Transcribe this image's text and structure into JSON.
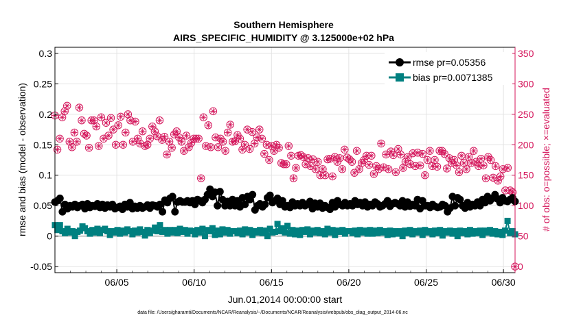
{
  "chart_data": {
    "type": "line",
    "title": "Southern Hemisphere",
    "subtitle": "AIRS_SPECIFIC_HUMIDITY @ 3.125000e+02 hPa",
    "xlabel": "Jun.01,2014 00:00:00 start",
    "ylabel": "rmse and bias (model - observation)",
    "y2label": "# of obs: o=possible; ×=evaluated",
    "xlim": [
      1,
      30.75
    ],
    "ylim": [
      -0.06,
      0.31
    ],
    "y2lim": [
      -10,
      360
    ],
    "x_ticks": [
      5,
      10,
      15,
      20,
      25,
      30
    ],
    "x_tick_labels": [
      "06/05",
      "06/10",
      "06/15",
      "06/20",
      "06/25",
      "06/30"
    ],
    "y_ticks": [
      -0.05,
      0,
      0.05,
      0.1,
      0.15,
      0.2,
      0.25,
      0.3
    ],
    "y_tick_labels": [
      "-0.05",
      "0",
      "0.05",
      "0.1",
      "0.15",
      "0.2",
      "0.25",
      "0.3"
    ],
    "y2_ticks": [
      0,
      50,
      100,
      150,
      200,
      250,
      300,
      350
    ],
    "y2_tick_labels": [
      "0",
      "50",
      "100",
      "150",
      "200",
      "250",
      "300",
      "350"
    ],
    "grid": true,
    "legend_position": "top-right",
    "series": [
      {
        "name": "rmse pr=0.05356",
        "axis": "left",
        "color": "#000000",
        "marker": "circle",
        "values": [
          0.056,
          0.058,
          0.062,
          0.04,
          0.052,
          0.045,
          0.05,
          0.048,
          0.052,
          0.047,
          0.05,
          0.052,
          0.045,
          0.053,
          0.047,
          0.05,
          0.049,
          0.053,
          0.047,
          0.052,
          0.046,
          0.051,
          0.048,
          0.052,
          0.045,
          0.047,
          0.049,
          0.044,
          0.052,
          0.048,
          0.055,
          0.045,
          0.049,
          0.046,
          0.05,
          0.046,
          0.048,
          0.051,
          0.046,
          0.051,
          0.05,
          0.048,
          0.052,
          0.04,
          0.059,
          0.055,
          0.062,
          0.065,
          0.04,
          0.056,
          0.058,
          0.056,
          0.056,
          0.058,
          0.055,
          0.058,
          0.052,
          0.06,
          0.058,
          0.055,
          0.06,
          0.068,
          0.077,
          0.065,
          0.072,
          0.05,
          0.073,
          0.06,
          0.05,
          0.057,
          0.05,
          0.06,
          0.05,
          0.058,
          0.048,
          0.063,
          0.052,
          0.065,
          0.06,
          0.068,
          0.043,
          0.05,
          0.053,
          0.048,
          0.052,
          0.063,
          0.067,
          0.055,
          0.058,
          0.062,
          0.052,
          0.058,
          0.048,
          0.05,
          0.047,
          0.056,
          0.05,
          0.053,
          0.05,
          0.055,
          0.05,
          0.052,
          0.057,
          0.045,
          0.054,
          0.048,
          0.054,
          0.046,
          0.05,
          0.047,
          0.044,
          0.055,
          0.048,
          0.058,
          0.052,
          0.05,
          0.055,
          0.05,
          0.053,
          0.05,
          0.058,
          0.052,
          0.055,
          0.05,
          0.056,
          0.048,
          0.052,
          0.05,
          0.056,
          0.053,
          0.048,
          0.05,
          0.053,
          0.058,
          0.049,
          0.053,
          0.055,
          0.053,
          0.05,
          0.058,
          0.048,
          0.056,
          0.049,
          0.052,
          0.05,
          0.06,
          0.045,
          0.058,
          0.05,
          0.05,
          0.047,
          0.052,
          0.049,
          0.047,
          0.048,
          0.052,
          0.05,
          0.04,
          0.046,
          0.065,
          0.05,
          0.063,
          0.06,
          0.05,
          0.046,
          0.055,
          0.048,
          0.052,
          0.05,
          0.056,
          0.05,
          0.06,
          0.055,
          0.065,
          0.058,
          0.062,
          0.068,
          0.061,
          0.055,
          0.063,
          0.058,
          0.057,
          0.06,
          0.063,
          0.057
        ]
      },
      {
        "name": "bias pr=0.0071385",
        "axis": "left",
        "color": "#008080",
        "marker": "square",
        "values": [
          0.018,
          0.01,
          0.018,
          0.008,
          0.005,
          0.012,
          0.006,
          0.008,
          0.0,
          0.007,
          0.009,
          0.016,
          0.013,
          0.008,
          0.004,
          0.01,
          0.006,
          0.012,
          0.005,
          0.01,
          0.012,
          0.008,
          0.002,
          0.008,
          0.006,
          0.01,
          0.004,
          0.009,
          0.006,
          0.011,
          0.008,
          0.003,
          0.009,
          0.006,
          0.011,
          0.007,
          0.001,
          0.01,
          0.005,
          0.009,
          0.014,
          0.008,
          0.018,
          0.007,
          0.01,
          0.004,
          0.01,
          0.006,
          0.01,
          0.005,
          0.012,
          0.007,
          0.01,
          0.004,
          0.009,
          0.008,
          0.003,
          0.01,
          0.006,
          0.012,
          0.0,
          0.01,
          0.008,
          0.013,
          0.002,
          0.009,
          0.003,
          0.011,
          0.006,
          0.01,
          0.004,
          0.008,
          0.008,
          0.005,
          0.009,
          0.003,
          0.011,
          0.006,
          0.01,
          0.002,
          0.008,
          0.006,
          0.01,
          0.005,
          0.009,
          0.0,
          0.012,
          0.006,
          0.007,
          0.02,
          0.008,
          0.013,
          0.006,
          0.017,
          0.004,
          0.01,
          0.003,
          0.009,
          0.002,
          0.01,
          0.007,
          0.011,
          0.003,
          0.009,
          0.006,
          0.01,
          0.005,
          0.008,
          0.003,
          0.012,
          0.006,
          0.01,
          0.002,
          0.009,
          0.007,
          0.01,
          0.004,
          0.008,
          0.008,
          0.005,
          0.009,
          0.003,
          0.01,
          0.006,
          0.009,
          0.004,
          0.01,
          0.004,
          0.009,
          0.005,
          0.01,
          0.006,
          0.008,
          0.002,
          0.009,
          0.003,
          0.008,
          0.004,
          0.008,
          0.0,
          0.009,
          0.005,
          0.01,
          0.003,
          0.008,
          0.006,
          0.009,
          0.002,
          0.01,
          0.006,
          0.008,
          0.003,
          0.009,
          0.005,
          0.01,
          0.001,
          0.008,
          0.006,
          0.009,
          0.004,
          0.008,
          0.0,
          0.009,
          0.005,
          0.008,
          0.003,
          0.01,
          0.004,
          0.008,
          0.005,
          0.009,
          0.002,
          0.009,
          0.006,
          0.01,
          0.004,
          0.008,
          0.003,
          0.007,
          0.002,
          0.009,
          0.025,
          0.005,
          0.008,
          0.003
        ]
      },
      {
        "name": "possible obs",
        "axis": "right",
        "color": "#d4145a",
        "marker": "open-circle",
        "values": [
          248,
          192,
          210,
          245,
          255,
          264,
          205,
          196,
          220,
          205,
          261,
          240,
          218,
          215,
          195,
          240,
          240,
          230,
          198,
          245,
          210,
          236,
          215,
          244,
          225,
          200,
          232,
          246,
          200,
          220,
          250,
          240,
          205,
          238,
          210,
          202,
          222,
          198,
          200,
          210,
          230,
          222,
          214,
          240,
          208,
          213,
          184,
          205,
          195,
          217,
          222,
          212,
          205,
          190,
          215,
          196,
          203,
          210,
          210,
          210,
          145,
          245,
          198,
          232,
          196,
          255,
          212,
          196,
          210,
          205,
          190,
          220,
          233,
          205,
          206,
          216,
          210,
          192,
          200,
          225,
          193,
          221,
          202,
          212,
          225,
          210,
          185,
          200,
          175,
          198,
          190,
          200,
          195,
          170,
          168,
          168,
          198,
          182,
          145,
          162,
          182,
          183,
          180,
          168,
          178,
          165,
          176,
          160,
          172,
          150,
          160,
          150,
          176,
          177,
          148,
          180,
          172,
          178,
          160,
          192,
          179,
          176,
          172,
          154,
          190,
          160,
          170,
          175,
          182,
          167,
          182,
          152,
          165,
          160,
          202,
          163,
          184,
          160,
          189,
          183,
          155,
          193,
          184,
          162,
          172,
          180,
          168,
          186,
          165,
          187,
          166,
          185,
          150,
          175,
          190,
          165,
          175,
          164,
          190,
          190,
          185,
          161,
          178,
          170,
          175,
          166,
          155,
          182,
          170,
          160,
          180,
          170,
          190,
          172,
          165,
          177,
          166,
          145,
          180,
          175,
          146,
          165,
          141,
          148,
          160,
          125,
          162,
          125,
          122,
          0
        ]
      },
      {
        "name": "evaluated obs",
        "axis": "right",
        "color": "#d4145a",
        "marker": "asterisk",
        "values": [
          248,
          192,
          210,
          245,
          255,
          264,
          205,
          196,
          220,
          205,
          261,
          240,
          218,
          215,
          195,
          240,
          240,
          230,
          198,
          245,
          210,
          236,
          215,
          244,
          225,
          200,
          232,
          246,
          200,
          220,
          250,
          240,
          205,
          238,
          210,
          202,
          222,
          198,
          200,
          210,
          230,
          222,
          214,
          240,
          208,
          213,
          184,
          205,
          195,
          217,
          222,
          212,
          205,
          190,
          215,
          196,
          203,
          210,
          210,
          210,
          145,
          245,
          198,
          232,
          196,
          255,
          212,
          196,
          210,
          205,
          190,
          220,
          233,
          205,
          206,
          216,
          210,
          192,
          200,
          225,
          193,
          221,
          202,
          212,
          225,
          210,
          185,
          200,
          175,
          198,
          190,
          200,
          195,
          170,
          168,
          168,
          198,
          182,
          145,
          162,
          182,
          183,
          180,
          168,
          178,
          165,
          176,
          160,
          172,
          150,
          160,
          150,
          176,
          177,
          148,
          180,
          172,
          178,
          160,
          192,
          179,
          176,
          172,
          154,
          190,
          160,
          170,
          175,
          182,
          167,
          182,
          152,
          165,
          160,
          202,
          163,
          184,
          160,
          189,
          183,
          155,
          193,
          184,
          162,
          172,
          180,
          168,
          186,
          165,
          187,
          166,
          185,
          150,
          175,
          190,
          165,
          175,
          164,
          190,
          190,
          185,
          161,
          178,
          170,
          175,
          166,
          155,
          182,
          170,
          160,
          180,
          170,
          190,
          172,
          165,
          177,
          166,
          145,
          180,
          175,
          146,
          165,
          141,
          148,
          160,
          125,
          162,
          125,
          122,
          0
        ]
      }
    ],
    "footnote": "data file: /Users/gharamti/Documents/NCAR/Reanalysis/~/Documents/NCAR/Reanalysis/webpub/obs_diag_output_2014-06.nc"
  }
}
